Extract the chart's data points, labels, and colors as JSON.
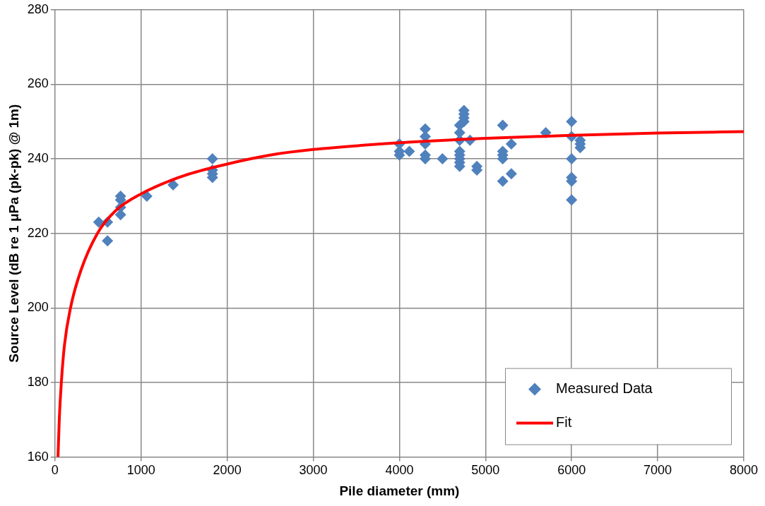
{
  "chart_data": {
    "type": "scatter",
    "xlabel": "Pile diameter (mm)",
    "ylabel": "Source Level (dB re 1 μPa (pk-pk) @ 1m)",
    "xlim": [
      0,
      8000
    ],
    "xticks": [
      0,
      1000,
      2000,
      3000,
      4000,
      5000,
      6000,
      7000,
      8000
    ],
    "ylim": [
      160,
      280
    ],
    "yticks": [
      160,
      180,
      200,
      220,
      240,
      260,
      280
    ],
    "grid": true,
    "legend": "bottom right",
    "series": [
      {
        "name": "Measured Data",
        "type": "scatter",
        "marker": "diamond",
        "color": "#4f81bd",
        "x": [
          508,
          610,
          610,
          762,
          762,
          762,
          762,
          1067,
          1372,
          1829,
          1829,
          1829,
          1829,
          4000,
          4000,
          4000,
          4115,
          4300,
          4300,
          4300,
          4300,
          4300,
          4500,
          4700,
          4700,
          4700,
          4700,
          4700,
          4700,
          4700,
          4700,
          4750,
          4750,
          4750,
          4750,
          4820,
          4900,
          4900,
          5200,
          5200,
          5200,
          5200,
          5200,
          5300,
          5300,
          5700,
          6000,
          6000,
          6000,
          6000,
          6000,
          6000,
          6100,
          6100,
          6100
        ],
        "values": [
          223,
          218,
          223,
          225,
          227,
          229,
          230,
          230,
          233,
          235,
          236,
          237,
          240,
          241,
          242,
          244,
          242,
          240,
          241,
          244,
          246,
          248,
          240,
          238,
          239,
          240,
          241,
          242,
          245,
          247,
          249,
          250,
          251,
          252,
          253,
          245,
          237,
          238,
          234,
          240,
          241,
          242,
          249,
          236,
          244,
          247,
          229,
          234,
          235,
          240,
          246,
          250,
          243,
          244,
          245
        ]
      },
      {
        "name": "Fit",
        "type": "line",
        "marker": "none",
        "line_style": "solid",
        "color": "#ff0000",
        "x": [
          35,
          50,
          74,
          110,
          180,
          300,
          493,
          700,
          1000,
          1500,
          2000,
          2500,
          3000,
          4000,
          5000,
          6000,
          7000,
          8000
        ],
        "values": [
          160,
          170,
          180,
          190,
          200,
          210,
          220,
          226,
          230.6,
          235.5,
          238.6,
          241,
          242.5,
          244.3,
          245.5,
          246.3,
          246.9,
          247.3
        ]
      }
    ]
  }
}
